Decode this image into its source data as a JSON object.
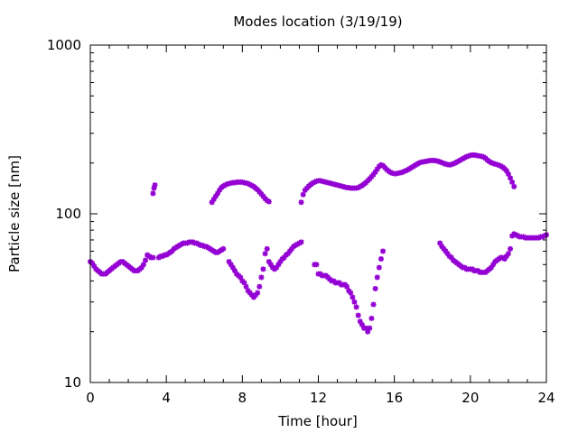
{
  "chart_data": {
    "type": "scatter",
    "title": "Modes location (3/19/19)",
    "xlabel": "Time [hour]",
    "ylabel": "Particle size [nm]",
    "xlim": [
      0,
      24
    ],
    "ylim": [
      10,
      1000
    ],
    "y_scale": "log",
    "x_ticks": [
      0,
      4,
      8,
      12,
      16,
      20,
      24
    ],
    "y_ticks": [
      10,
      100,
      1000
    ],
    "grid": false,
    "marker_color": "#9400D3",
    "series": [
      {
        "x": [
          0.0,
          0.1,
          0.2,
          0.3,
          0.4,
          0.5,
          0.6,
          0.7,
          0.8,
          0.9,
          1.0,
          1.1,
          1.2,
          1.3,
          1.4,
          1.5,
          1.6,
          1.7,
          1.8,
          1.9,
          2.0,
          2.1,
          2.2,
          2.3,
          2.4,
          2.5,
          2.6,
          2.7,
          2.8,
          2.9,
          3.0,
          3.1,
          3.2,
          3.3,
          3.6,
          3.7,
          3.8,
          3.9,
          4.0,
          4.1,
          4.2,
          4.3,
          4.4,
          4.5,
          4.6,
          4.7,
          4.8,
          4.9,
          5.0,
          5.1,
          5.2,
          5.3,
          5.4,
          5.5,
          5.6,
          5.7,
          5.8,
          5.9,
          6.0,
          6.1,
          6.2,
          6.3,
          6.4,
          6.5,
          6.6,
          6.7,
          6.8,
          6.9,
          7.0,
          7.3,
          7.4,
          7.5,
          7.6,
          7.7,
          7.8,
          7.9,
          8.0,
          8.1,
          8.2,
          8.3,
          8.4,
          8.5,
          8.6,
          8.7,
          8.8,
          8.9,
          9.0,
          9.1,
          9.2,
          9.3,
          9.4,
          9.5,
          9.6,
          9.7,
          9.8,
          9.9,
          10.0,
          10.1,
          10.2,
          10.3,
          10.4,
          10.5,
          10.6,
          10.7,
          10.8,
          10.9,
          11.0,
          11.1
        ],
        "y": [
          52,
          51,
          49,
          47,
          46,
          45,
          44,
          44,
          44,
          45,
          46,
          47,
          48,
          49,
          50,
          51,
          52,
          52,
          51,
          50,
          49,
          48,
          47,
          46,
          46,
          46,
          47,
          48,
          50,
          53,
          57,
          56,
          55,
          55,
          55,
          56,
          56,
          57,
          57,
          58,
          59,
          60,
          62,
          63,
          64,
          65,
          66,
          67,
          67,
          67,
          68,
          68,
          68,
          67,
          67,
          66,
          65,
          65,
          64,
          64,
          63,
          62,
          61,
          60,
          59,
          59,
          60,
          61,
          62,
          52,
          50,
          48,
          46,
          44,
          43,
          42,
          40,
          39,
          37,
          35,
          34,
          33,
          32,
          33,
          34,
          37,
          42,
          47,
          58,
          62,
          52,
          50,
          48,
          47,
          48,
          50,
          52,
          54,
          55,
          57,
          58,
          60,
          62,
          64,
          65,
          66,
          67,
          68
        ]
      },
      {
        "x": [
          3.3,
          3.35,
          3.4,
          6.4,
          6.5,
          6.6,
          6.7,
          6.8,
          6.9,
          7.0,
          7.1,
          7.2,
          7.3,
          7.4,
          7.5,
          7.6,
          7.7,
          7.8,
          7.9,
          8.0,
          8.1,
          8.2,
          8.3,
          8.4,
          8.5,
          8.6,
          8.7,
          8.8,
          8.9,
          9.0,
          9.1,
          9.2,
          9.3,
          9.4,
          11.1,
          11.2,
          11.3,
          11.4,
          11.5,
          11.6,
          11.7,
          11.8,
          11.9,
          12.0,
          12.1,
          12.2,
          12.3,
          12.4,
          12.5,
          12.6,
          12.7,
          12.8,
          12.9,
          13.0,
          13.1,
          13.2,
          13.3,
          13.4,
          13.5,
          13.6,
          13.7,
          13.8,
          13.9,
          14.0,
          14.1,
          14.2,
          14.3,
          14.4,
          14.5,
          14.6,
          14.7,
          14.8,
          14.9,
          15.0,
          15.1,
          15.2,
          15.3,
          15.4,
          15.5,
          15.6,
          15.7,
          15.8,
          15.9,
          16.0,
          16.1,
          16.2,
          16.3,
          16.4,
          16.5,
          16.6,
          16.7,
          16.8,
          16.9,
          17.0,
          17.1,
          17.2,
          17.3,
          17.4,
          17.5,
          17.6,
          17.7,
          17.8,
          17.9,
          18.0,
          18.1,
          18.2,
          18.3,
          18.4,
          18.5,
          18.6,
          18.7,
          18.8,
          18.9,
          19.0,
          19.1,
          19.2,
          19.3,
          19.4,
          19.5,
          19.6,
          19.7,
          19.8,
          19.9,
          20.0,
          20.1,
          20.2,
          20.3,
          20.4,
          20.5,
          20.6,
          20.7,
          20.8,
          20.9,
          21.0,
          21.1,
          21.2,
          21.3,
          21.4,
          21.5,
          21.6,
          21.7,
          21.8,
          21.9,
          22.0,
          22.1,
          22.2,
          22.3
        ],
        "y": [
          132,
          142,
          148,
          117,
          122,
          127,
          132,
          138,
          143,
          146,
          148,
          150,
          151,
          152,
          153,
          153,
          154,
          154,
          154,
          154,
          153,
          152,
          151,
          149,
          147,
          145,
          142,
          139,
          135,
          131,
          127,
          123,
          120,
          118,
          117,
          130,
          138,
          142,
          146,
          149,
          152,
          154,
          156,
          157,
          157,
          156,
          155,
          154,
          153,
          152,
          151,
          150,
          149,
          148,
          147,
          146,
          145,
          144,
          143,
          143,
          142,
          142,
          142,
          142,
          143,
          145,
          147,
          150,
          153,
          157,
          161,
          166,
          171,
          177,
          184,
          191,
          195,
          193,
          188,
          183,
          179,
          176,
          174,
          173,
          173,
          174,
          175,
          176,
          178,
          180,
          182,
          185,
          188,
          191,
          194,
          197,
          200,
          202,
          203,
          204,
          205,
          206,
          207,
          207,
          207,
          206,
          205,
          203,
          201,
          199,
          197,
          196,
          195,
          196,
          198,
          200,
          203,
          206,
          209,
          212,
          215,
          218,
          220,
          222,
          223,
          223,
          222,
          221,
          220,
          219,
          217,
          213,
          208,
          204,
          201,
          199,
          197,
          196,
          194,
          192,
          189,
          185,
          180,
          172,
          163,
          154,
          145
        ]
      },
      {
        "x": [
          11.8,
          11.9,
          12.0,
          12.1,
          12.2,
          12.3,
          12.4,
          12.5,
          12.6,
          12.7,
          12.8,
          12.9,
          13.0,
          13.1,
          13.2,
          13.3,
          13.4,
          13.5,
          13.6,
          13.7,
          13.8,
          13.9,
          14.0,
          14.1,
          14.2,
          14.3,
          14.4,
          14.5,
          14.6,
          14.7,
          14.8,
          14.9,
          15.0,
          15.1,
          15.2,
          15.3,
          15.4
        ],
        "y": [
          50,
          50,
          44,
          44,
          43,
          43,
          43,
          42,
          41,
          40,
          40,
          39,
          39,
          39,
          38,
          38,
          38,
          37,
          35,
          34,
          32,
          30,
          28,
          25,
          23,
          22,
          21,
          21,
          20,
          21,
          24,
          29,
          36,
          42,
          48,
          54,
          60
        ]
      },
      {
        "x": [
          18.4,
          18.5,
          18.6,
          18.7,
          18.8,
          18.9,
          19.0,
          19.1,
          19.2,
          19.3,
          19.4,
          19.5,
          19.6,
          19.7,
          19.8,
          19.9,
          20.0,
          20.1,
          20.2,
          20.3,
          20.4,
          20.5,
          20.6,
          20.7,
          20.8,
          20.9,
          21.0,
          21.1,
          21.2,
          21.3,
          21.4,
          21.5,
          21.6,
          21.7,
          21.8,
          21.9,
          22.0,
          22.1,
          22.2,
          22.3,
          22.4,
          22.5,
          22.6,
          22.7,
          22.8,
          22.9,
          23.0,
          23.1,
          23.2,
          23.3,
          23.4,
          23.5,
          23.6,
          23.7,
          23.8,
          23.9,
          24.0
        ],
        "y": [
          67,
          64,
          62,
          60,
          58,
          56,
          55,
          53,
          52,
          51,
          50,
          49,
          48,
          48,
          47,
          47,
          47,
          47,
          46,
          46,
          46,
          45,
          45,
          45,
          45,
          46,
          47,
          48,
          50,
          52,
          53,
          54,
          55,
          55,
          54,
          56,
          58,
          62,
          74,
          76,
          75,
          74,
          73,
          73,
          73,
          72,
          72,
          72,
          72,
          72,
          72,
          72,
          72,
          73,
          73,
          74,
          75
        ]
      }
    ]
  }
}
